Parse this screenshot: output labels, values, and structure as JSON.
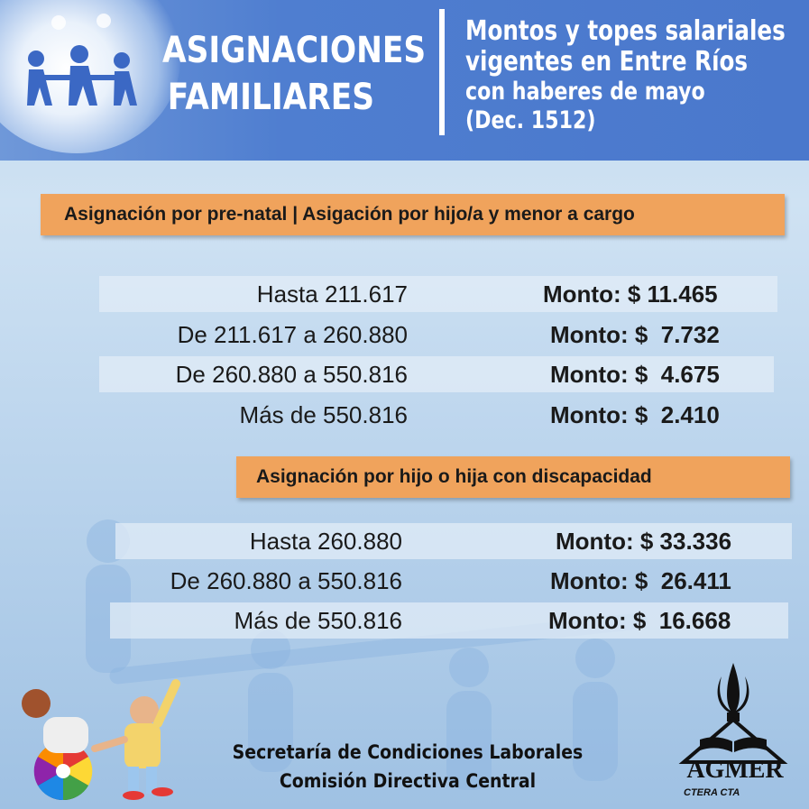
{
  "header": {
    "title_line1": "ASIGNACIONES",
    "title_line2": "FAMILIARES",
    "subtitle_line1": "Montos y topes salariales",
    "subtitle_line2": "vigentes en Entre Ríos",
    "subtitle_line3": "con haberes de mayo",
    "subtitle_line4": "(Dec. 1512)"
  },
  "section1": {
    "heading": "Asignación por pre-natal | Asigación por hijo/a y menor a cargo",
    "rows": [
      {
        "range": "Hasta 211.617",
        "amount": "Monto: $ 11.465"
      },
      {
        "range": "De 211.617 a 260.880",
        "amount": "Monto: $  7.732"
      },
      {
        "range": "De 260.880 a 550.816",
        "amount": "Monto: $  4.675"
      },
      {
        "range": "Más de 550.816",
        "amount": "Monto: $  2.410"
      }
    ]
  },
  "section2": {
    "heading": "Asignación por hijo o hija con discapacidad",
    "rows": [
      {
        "range": "Hasta 260.880",
        "amount": "Monto: $ 33.336"
      },
      {
        "range": "De 260.880 a 550.816",
        "amount": "Monto: $  26.411"
      },
      {
        "range": "Más de 550.816",
        "amount": "Monto: $  16.668"
      }
    ]
  },
  "footer": {
    "line1": "Secretaría de Condiciones Laborales",
    "line2": "Comisión Directiva Central"
  },
  "logo": {
    "name": "AGMER",
    "affiliations": "CTERA  CTA"
  },
  "colors": {
    "header_blue": "#4f7ed0",
    "bar_orange": "#f0a35c",
    "background_light_blue": "#cfe2f3"
  }
}
